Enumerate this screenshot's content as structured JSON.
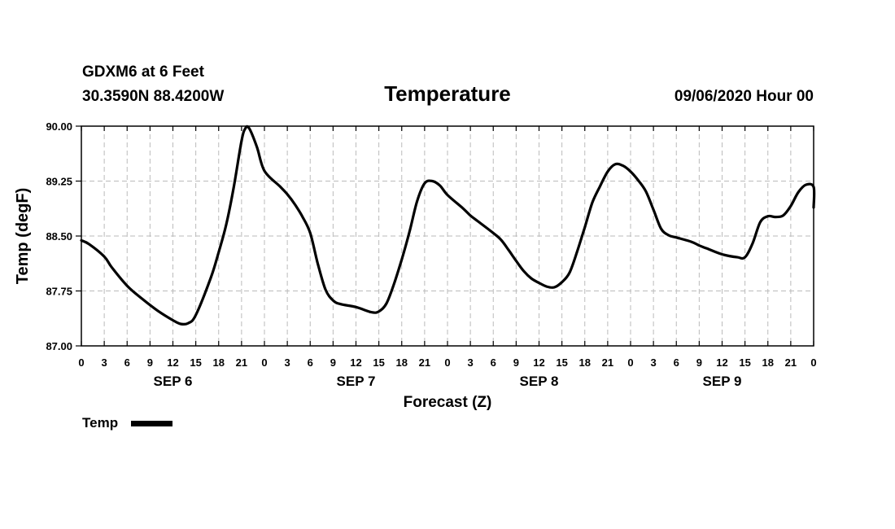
{
  "header": {
    "station": "GDXM6 at 6 Feet",
    "location": "30.3590N 88.4200W",
    "date": "09/06/2020 Hour 00"
  },
  "legend": {
    "label": "Temp"
  },
  "colors": {
    "line": "#000000",
    "grid": "#bbbbbb",
    "background": "#ffffff"
  },
  "chart_data": {
    "type": "line",
    "title": "Temperature",
    "xlabel": "Forecast (Z)",
    "ylabel": "Temp (degF)",
    "ylim": [
      87.0,
      90.0
    ],
    "yticks": [
      "87.00",
      "87.75",
      "88.50",
      "89.25",
      "90.00"
    ],
    "xlim": [
      0,
      96
    ],
    "x_tick_step_hours": 3,
    "x_tick_labels": [
      "0",
      "3",
      "6",
      "9",
      "12",
      "15",
      "18",
      "21",
      "0",
      "3",
      "6",
      "9",
      "12",
      "15",
      "18",
      "21",
      "0",
      "3",
      "6",
      "9",
      "12",
      "15",
      "18",
      "21",
      "0",
      "3",
      "6",
      "9",
      "12",
      "15",
      "18",
      "21",
      "0"
    ],
    "day_labels": [
      {
        "label": "SEP 6",
        "hour": 12
      },
      {
        "label": "SEP 7",
        "hour": 36
      },
      {
        "label": "SEP 8",
        "hour": 60
      },
      {
        "label": "SEP 9",
        "hour": 84
      }
    ],
    "grid": true,
    "series": [
      {
        "name": "Temp",
        "x": [
          0,
          1,
          3,
          4,
          6,
          8,
          10,
          12,
          13,
          14,
          15,
          17,
          18,
          19,
          20,
          21,
          21.5,
          22,
          23,
          24,
          26,
          27,
          28,
          29,
          30,
          31,
          32,
          33,
          34,
          36,
          38,
          39,
          40,
          41,
          42,
          43,
          44,
          45,
          46,
          47,
          48,
          50,
          51,
          52,
          54,
          55,
          56,
          57,
          58,
          59,
          60,
          61,
          62,
          63,
          64,
          65,
          66,
          67,
          68,
          69,
          70,
          71,
          72,
          73,
          74,
          75,
          76,
          77,
          78,
          80,
          81,
          82,
          84,
          86,
          87,
          88,
          89,
          90,
          91,
          92,
          93,
          94,
          95,
          96
        ],
        "values": [
          88.44,
          88.39,
          88.22,
          88.07,
          87.82,
          87.64,
          87.48,
          87.35,
          87.3,
          87.31,
          87.42,
          87.94,
          88.28,
          88.66,
          89.18,
          89.8,
          89.97,
          89.97,
          89.72,
          89.39,
          89.18,
          89.07,
          88.93,
          88.76,
          88.54,
          88.12,
          87.77,
          87.62,
          87.57,
          87.53,
          87.46,
          87.47,
          87.58,
          87.85,
          88.18,
          88.55,
          88.97,
          89.22,
          89.25,
          89.19,
          89.06,
          88.88,
          88.78,
          88.7,
          88.54,
          88.45,
          88.31,
          88.16,
          88.02,
          87.92,
          87.86,
          87.81,
          87.8,
          87.87,
          88.0,
          88.29,
          88.62,
          88.96,
          89.18,
          89.38,
          89.48,
          89.46,
          89.38,
          89.26,
          89.11,
          88.86,
          88.6,
          88.51,
          88.48,
          88.42,
          88.37,
          88.33,
          88.25,
          88.21,
          88.21,
          88.4,
          88.69,
          88.77,
          88.76,
          88.78,
          88.91,
          89.1,
          89.2,
          89.17
        ],
        "values_tail": [
          88.89
        ]
      }
    ]
  }
}
